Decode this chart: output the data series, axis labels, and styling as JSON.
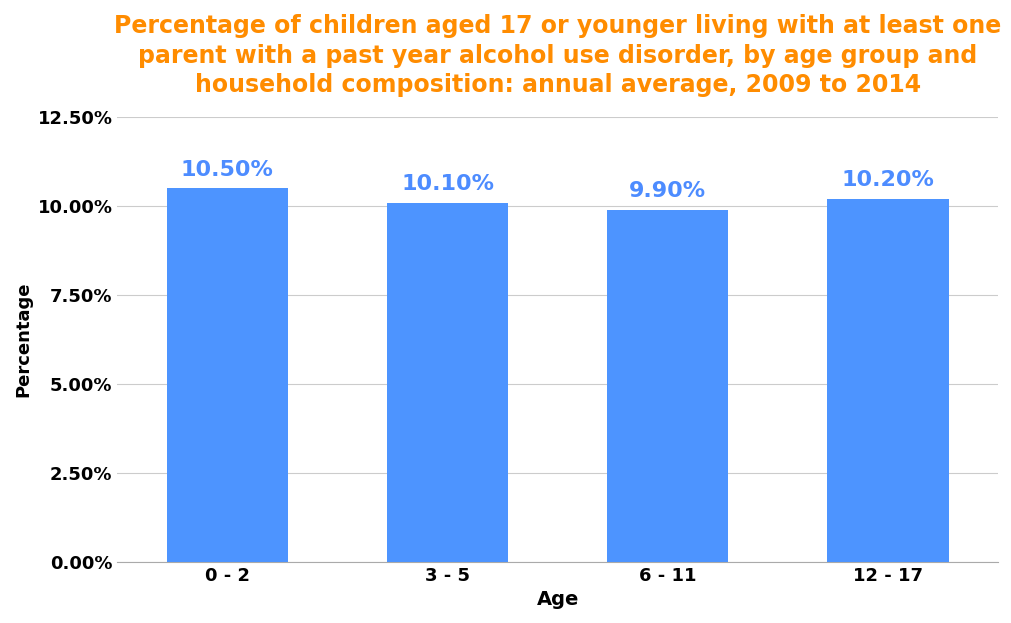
{
  "title": "Percentage of children aged 17 or younger living with at least one\nparent with a past year alcohol use disorder, by age group and\nhousehold composition: annual average, 2009 to 2014",
  "title_color": "#FF8C00",
  "title_fontsize": 17,
  "categories": [
    "0 - 2",
    "3 - 5",
    "6 - 11",
    "12 - 17"
  ],
  "values": [
    10.5,
    10.1,
    9.9,
    10.2
  ],
  "bar_color": "#4d94ff",
  "label_color": "#4d8cff",
  "label_fontsize": 16,
  "xlabel": "Age",
  "ylabel": "Percentage",
  "xlabel_fontsize": 14,
  "ylabel_fontsize": 13,
  "tick_fontsize": 13,
  "ylim": [
    0,
    12.5
  ],
  "yticks": [
    0.0,
    2.5,
    5.0,
    7.5,
    10.0,
    12.5
  ],
  "background_color": "#ffffff",
  "grid_color": "#cccccc",
  "bar_width": 0.55
}
